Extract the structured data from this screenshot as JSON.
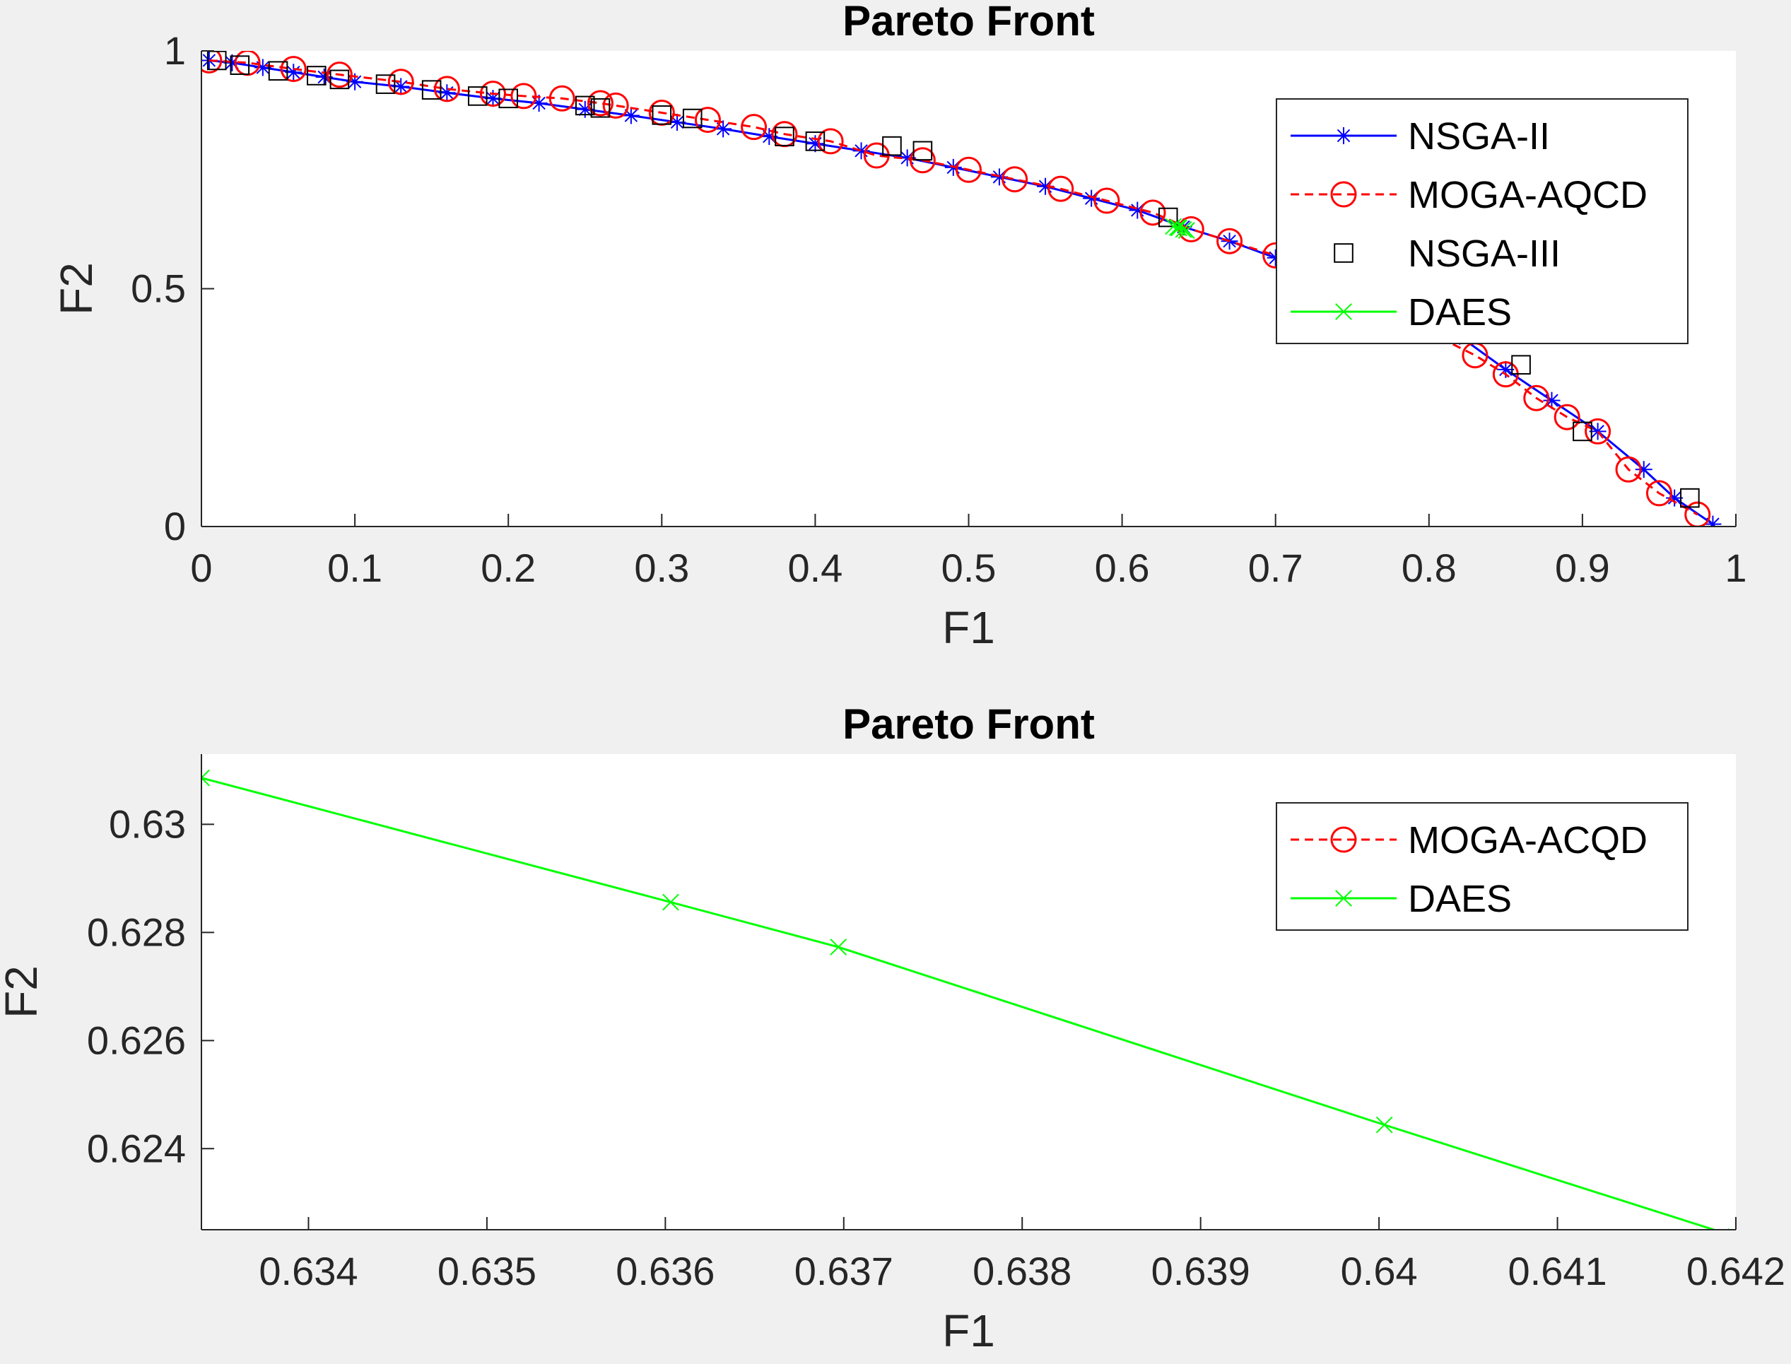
{
  "chart_data": [
    {
      "type": "line",
      "title": "Pareto Front",
      "xlabel": "F1",
      "ylabel": "F2",
      "xlim": [
        0,
        1
      ],
      "ylim": [
        0,
        1.0
      ],
      "xticks": [
        0,
        0.1,
        0.2,
        0.3,
        0.4,
        0.5,
        0.6,
        0.7,
        0.8,
        0.9,
        1
      ],
      "xtick_labels": [
        "0",
        "0.1",
        "0.2",
        "0.3",
        "0.4",
        "0.5",
        "0.6",
        "0.7",
        "0.8",
        "0.9",
        "1"
      ],
      "yticks": [
        0,
        0.5,
        1
      ],
      "ytick_labels": [
        "0",
        "0.5",
        "1"
      ],
      "grid": false,
      "legend_position": "top-right",
      "series": [
        {
          "name": "NSGA-II",
          "color": "#0000ff",
          "marker": "asterisk",
          "line": "solid",
          "x": [
            0.005,
            0.02,
            0.04,
            0.06,
            0.08,
            0.1,
            0.13,
            0.16,
            0.19,
            0.22,
            0.25,
            0.28,
            0.31,
            0.34,
            0.37,
            0.4,
            0.43,
            0.46,
            0.49,
            0.52,
            0.55,
            0.58,
            0.61,
            0.64,
            0.67,
            0.7,
            0.73,
            0.76,
            0.79,
            0.82,
            0.85,
            0.88,
            0.91,
            0.94,
            0.96,
            0.985
          ],
          "y": [
            0.98,
            0.975,
            0.965,
            0.955,
            0.945,
            0.935,
            0.925,
            0.912,
            0.9,
            0.89,
            0.877,
            0.864,
            0.85,
            0.836,
            0.82,
            0.805,
            0.79,
            0.775,
            0.755,
            0.735,
            0.715,
            0.69,
            0.665,
            0.63,
            0.6,
            0.565,
            0.53,
            0.49,
            0.45,
            0.4,
            0.33,
            0.265,
            0.2,
            0.12,
            0.06,
            0.005
          ]
        },
        {
          "name": "MOGA-AQCD",
          "color": "#ff0000",
          "marker": "circle",
          "line": "dashed",
          "x": [
            0.005,
            0.03,
            0.06,
            0.09,
            0.13,
            0.16,
            0.19,
            0.21,
            0.235,
            0.26,
            0.27,
            0.3,
            0.33,
            0.36,
            0.38,
            0.41,
            0.44,
            0.47,
            0.5,
            0.53,
            0.56,
            0.59,
            0.62,
            0.645,
            0.67,
            0.7,
            0.83,
            0.85,
            0.87,
            0.89,
            0.91,
            0.93,
            0.95,
            0.975
          ],
          "y": [
            0.98,
            0.975,
            0.962,
            0.95,
            0.935,
            0.92,
            0.91,
            0.905,
            0.9,
            0.89,
            0.885,
            0.87,
            0.855,
            0.84,
            0.825,
            0.81,
            0.78,
            0.77,
            0.75,
            0.73,
            0.71,
            0.685,
            0.66,
            0.625,
            0.6,
            0.57,
            0.36,
            0.32,
            0.27,
            0.23,
            0.2,
            0.12,
            0.07,
            0.025
          ]
        },
        {
          "name": "NSGA-III",
          "color": "#000000",
          "marker": "square",
          "line": "none",
          "x": [
            0.01,
            0.025,
            0.05,
            0.075,
            0.09,
            0.12,
            0.15,
            0.18,
            0.2,
            0.25,
            0.26,
            0.3,
            0.32,
            0.38,
            0.4,
            0.45,
            0.47,
            0.63,
            0.86,
            0.9,
            0.97
          ],
          "y": [
            0.98,
            0.97,
            0.958,
            0.948,
            0.94,
            0.93,
            0.918,
            0.905,
            0.9,
            0.885,
            0.88,
            0.865,
            0.858,
            0.82,
            0.81,
            0.8,
            0.79,
            0.65,
            0.34,
            0.2,
            0.06
          ]
        },
        {
          "name": "DAES",
          "color": "#00ff00",
          "marker": "x",
          "line": "solid",
          "x": [
            0.6334,
            0.636,
            0.637,
            0.64,
            0.642
          ],
          "y": [
            0.6309,
            0.6286,
            0.6278,
            0.6245,
            0.6225
          ]
        }
      ]
    },
    {
      "type": "line",
      "title": "Pareto Front",
      "xlabel": "F1",
      "ylabel": "F2",
      "xlim": [
        0.6334,
        0.642
      ],
      "ylim": [
        0.6225,
        0.6313
      ],
      "xticks": [
        0.634,
        0.635,
        0.636,
        0.637,
        0.638,
        0.639,
        0.64,
        0.641,
        0.642
      ],
      "xtick_labels": [
        "0.634",
        "0.635",
        "0.636",
        "0.637",
        "0.638",
        "0.639",
        "0.64",
        "0.641",
        "0.642"
      ],
      "yticks": [
        0.624,
        0.626,
        0.628,
        0.63
      ],
      "ytick_labels": [
        "0.624",
        "0.626",
        "0.628",
        "0.63"
      ],
      "grid": false,
      "legend_position": "top-right",
      "series": [
        {
          "name": "MOGA-ACQD",
          "color": "#ff0000",
          "marker": "circle",
          "line": "dashed",
          "x": [],
          "y": []
        },
        {
          "name": "DAES",
          "color": "#00ff00",
          "marker": "x",
          "line": "solid",
          "x": [
            0.6334,
            0.63603,
            0.63697,
            0.64003,
            0.642
          ],
          "y": [
            0.63086,
            0.62856,
            0.62773,
            0.62444,
            0.62237
          ]
        }
      ]
    }
  ]
}
